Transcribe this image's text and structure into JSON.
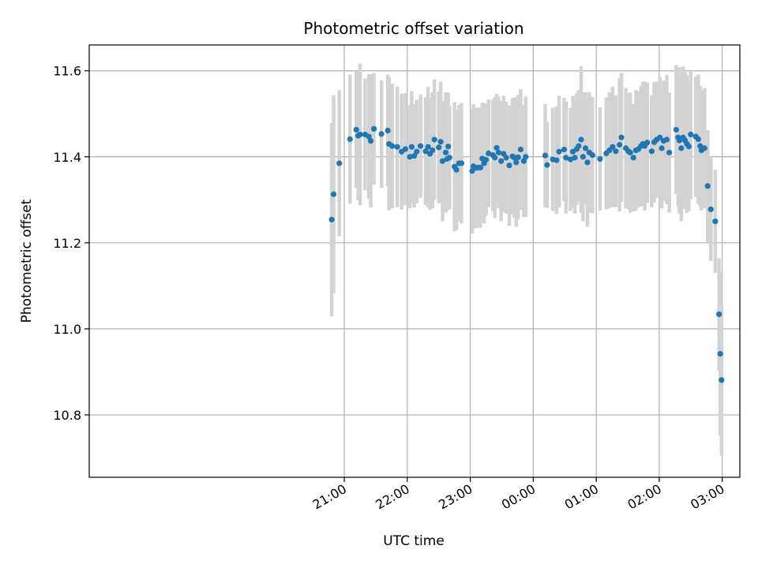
{
  "chart_data": {
    "type": "scatter",
    "title": "Photometric offset variation",
    "xlabel": "UTC time",
    "ylabel": "Photometric offset",
    "x_unit": "hours past 00:00 UTC (negative = previous evening)",
    "xlim": [
      -7.05,
      3.28
    ],
    "ylim": [
      10.655,
      11.66
    ],
    "x_ticks": [
      {
        "value": -3,
        "label": "21:00"
      },
      {
        "value": -2,
        "label": "22:00"
      },
      {
        "value": -1,
        "label": "23:00"
      },
      {
        "value": 0,
        "label": "00:00"
      },
      {
        "value": 1,
        "label": "01:00"
      },
      {
        "value": 2,
        "label": "02:00"
      },
      {
        "value": 3,
        "label": "03:00"
      }
    ],
    "y_ticks": [
      {
        "value": 10.8,
        "label": "10.8"
      },
      {
        "value": 11.0,
        "label": "11.0"
      },
      {
        "value": 11.2,
        "label": "11.2"
      },
      {
        "value": 11.4,
        "label": "11.4"
      },
      {
        "value": 11.6,
        "label": "11.6"
      }
    ],
    "grid": true,
    "marker_color": "#1f77b4",
    "errorbar_color": "#d3d3d3",
    "points": [
      [
        -3.2,
        11.254,
        0.225
      ],
      [
        -3.17,
        11.313,
        0.23
      ],
      [
        -3.08,
        11.385,
        0.17
      ],
      [
        -2.91,
        11.441,
        0.15
      ],
      [
        -2.81,
        11.463,
        0.135
      ],
      [
        -2.78,
        11.449,
        0.15
      ],
      [
        -2.75,
        11.452,
        0.165
      ],
      [
        -2.67,
        11.452,
        0.13
      ],
      [
        -2.61,
        11.447,
        0.145
      ],
      [
        -2.58,
        11.437,
        0.155
      ],
      [
        -2.53,
        11.465,
        0.13
      ],
      [
        -2.41,
        11.453,
        0.125
      ],
      [
        -2.31,
        11.461,
        0.13
      ],
      [
        -2.29,
        11.43,
        0.155
      ],
      [
        -2.24,
        11.425,
        0.145
      ],
      [
        -2.16,
        11.423,
        0.14
      ],
      [
        -2.09,
        11.412,
        0.135
      ],
      [
        -2.03,
        11.418,
        0.13
      ],
      [
        -1.96,
        11.4,
        0.12
      ],
      [
        -1.93,
        11.423,
        0.13
      ],
      [
        -1.89,
        11.402,
        0.12
      ],
      [
        -1.85,
        11.412,
        0.12
      ],
      [
        -1.79,
        11.425,
        0.12
      ],
      [
        -1.71,
        11.413,
        0.125
      ],
      [
        -1.67,
        11.423,
        0.14
      ],
      [
        -1.64,
        11.407,
        0.13
      ],
      [
        -1.6,
        11.415,
        0.135
      ],
      [
        -1.57,
        11.44,
        0.14
      ],
      [
        -1.5,
        11.422,
        0.13
      ],
      [
        -1.47,
        11.435,
        0.14
      ],
      [
        -1.44,
        11.39,
        0.14
      ],
      [
        -1.39,
        11.41,
        0.14
      ],
      [
        -1.37,
        11.395,
        0.12
      ],
      [
        -1.35,
        11.424,
        0.125
      ],
      [
        -1.33,
        11.398,
        0.12
      ],
      [
        -1.25,
        11.377,
        0.15
      ],
      [
        -1.22,
        11.37,
        0.14
      ],
      [
        -1.18,
        11.385,
        0.135
      ],
      [
        -1.14,
        11.385,
        0.14
      ],
      [
        -0.97,
        11.367,
        0.145
      ],
      [
        -0.95,
        11.378,
        0.145
      ],
      [
        -0.92,
        11.374,
        0.14
      ],
      [
        -0.88,
        11.375,
        0.14
      ],
      [
        -0.84,
        11.375,
        0.14
      ],
      [
        -0.81,
        11.396,
        0.13
      ],
      [
        -0.78,
        11.385,
        0.14
      ],
      [
        -0.75,
        11.393,
        0.13
      ],
      [
        -0.71,
        11.408,
        0.125
      ],
      [
        -0.64,
        11.404,
        0.13
      ],
      [
        -0.61,
        11.398,
        0.14
      ],
      [
        -0.58,
        11.421,
        0.125
      ],
      [
        -0.55,
        11.41,
        0.13
      ],
      [
        -0.51,
        11.39,
        0.14
      ],
      [
        -0.47,
        11.407,
        0.135
      ],
      [
        -0.43,
        11.398,
        0.13
      ],
      [
        -0.38,
        11.38,
        0.14
      ],
      [
        -0.33,
        11.401,
        0.135
      ],
      [
        -0.3,
        11.398,
        0.14
      ],
      [
        -0.27,
        11.387,
        0.15
      ],
      [
        -0.24,
        11.399,
        0.145
      ],
      [
        -0.2,
        11.417,
        0.14
      ],
      [
        -0.15,
        11.39,
        0.13
      ],
      [
        -0.12,
        11.4,
        0.14
      ],
      [
        0.19,
        11.403,
        0.12
      ],
      [
        0.22,
        11.381,
        0.1
      ],
      [
        0.31,
        11.394,
        0.12
      ],
      [
        0.37,
        11.392,
        0.125
      ],
      [
        0.41,
        11.412,
        0.13
      ],
      [
        0.49,
        11.417,
        0.12
      ],
      [
        0.52,
        11.398,
        0.13
      ],
      [
        0.59,
        11.394,
        0.12
      ],
      [
        0.63,
        11.412,
        0.13
      ],
      [
        0.66,
        11.398,
        0.13
      ],
      [
        0.69,
        11.418,
        0.13
      ],
      [
        0.72,
        11.425,
        0.13
      ],
      [
        0.76,
        11.44,
        0.17
      ],
      [
        0.79,
        11.4,
        0.15
      ],
      [
        0.83,
        11.42,
        0.13
      ],
      [
        0.86,
        11.387,
        0.15
      ],
      [
        0.89,
        11.41,
        0.14
      ],
      [
        0.94,
        11.404,
        0.135
      ],
      [
        1.06,
        11.395,
        0.12
      ],
      [
        1.16,
        11.408,
        0.13
      ],
      [
        1.21,
        11.415,
        0.135
      ],
      [
        1.26,
        11.423,
        0.14
      ],
      [
        1.31,
        11.413,
        0.13
      ],
      [
        1.37,
        11.428,
        0.155
      ],
      [
        1.4,
        11.445,
        0.15
      ],
      [
        1.47,
        11.42,
        0.14
      ],
      [
        1.51,
        11.413,
        0.135
      ],
      [
        1.54,
        11.41,
        0.14
      ],
      [
        1.59,
        11.398,
        0.125
      ],
      [
        1.63,
        11.415,
        0.14
      ],
      [
        1.67,
        11.418,
        0.135
      ],
      [
        1.71,
        11.425,
        0.14
      ],
      [
        1.74,
        11.43,
        0.145
      ],
      [
        1.77,
        11.425,
        0.15
      ],
      [
        1.81,
        11.433,
        0.14
      ],
      [
        1.88,
        11.413,
        0.13
      ],
      [
        1.92,
        11.434,
        0.14
      ],
      [
        1.96,
        11.44,
        0.135
      ],
      [
        2.01,
        11.445,
        0.14
      ],
      [
        2.04,
        11.42,
        0.14
      ],
      [
        2.07,
        11.437,
        0.14
      ],
      [
        2.12,
        11.44,
        0.15
      ],
      [
        2.16,
        11.41,
        0.14
      ],
      [
        2.27,
        11.463,
        0.15
      ],
      [
        2.3,
        11.445,
        0.16
      ],
      [
        2.32,
        11.438,
        0.17
      ],
      [
        2.35,
        11.42,
        0.17
      ],
      [
        2.38,
        11.445,
        0.165
      ],
      [
        2.41,
        11.438,
        0.16
      ],
      [
        2.44,
        11.43,
        0.16
      ],
      [
        2.47,
        11.424,
        0.15
      ],
      [
        2.5,
        11.452,
        0.15
      ],
      [
        2.58,
        11.447,
        0.14
      ],
      [
        2.62,
        11.441,
        0.15
      ],
      [
        2.65,
        11.425,
        0.14
      ],
      [
        2.67,
        11.415,
        0.14
      ],
      [
        2.72,
        11.42,
        0.14
      ],
      [
        2.77,
        11.332,
        0.13
      ],
      [
        2.82,
        11.278,
        0.12
      ],
      [
        2.89,
        11.25,
        0.12
      ],
      [
        2.95,
        11.034,
        0.13
      ],
      [
        2.97,
        10.942,
        0.19
      ],
      [
        2.99,
        10.881,
        0.175
      ]
    ]
  }
}
